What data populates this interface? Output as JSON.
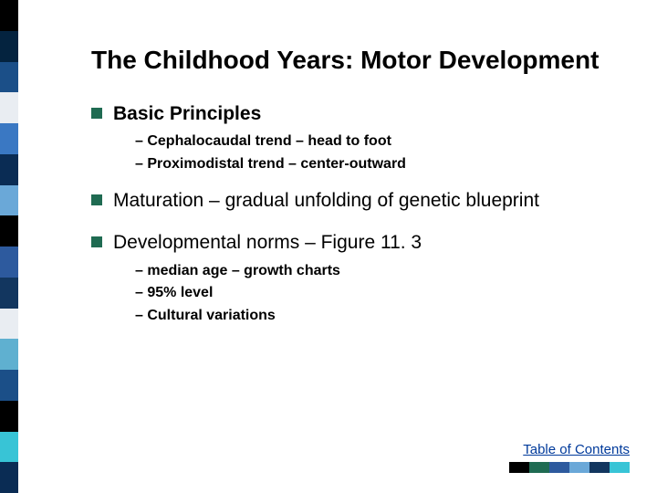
{
  "sidebar_colors": [
    "#000000",
    "#04233f",
    "#1b4f88",
    "#e9edf2",
    "#3a78c3",
    "#0a2c54",
    "#6aa8d8",
    "#000000",
    "#2d5a9e",
    "#12365f",
    "#e9edf2",
    "#5fb0d0",
    "#1b4f88",
    "#000000",
    "#38c4d6",
    "#0a2c54"
  ],
  "title": "The Childhood Years: Motor Development",
  "bullets": [
    {
      "text": "Basic Principles",
      "bold": true,
      "subs": [
        "Cephalocaudal trend – head to foot",
        "Proximodistal trend – center-outward"
      ]
    },
    {
      "text": "Maturation – gradual unfolding of genetic blueprint",
      "bold": false,
      "subs": []
    },
    {
      "text": "Developmental norms – Figure 11. 3",
      "bold": false,
      "subs": [
        "median age – growth charts",
        "95% level",
        "Cultural variations"
      ]
    }
  ],
  "footer": {
    "link_text": "Table of Contents",
    "swatch_colors": [
      "#000000",
      "#1f6b52",
      "#2d5a9e",
      "#6aa8d8",
      "#12365f",
      "#38c4d6"
    ]
  },
  "bullet_square_color": "#1f6b52",
  "title_fontsize": 28,
  "body_fontsize": 21,
  "sub_fontsize": 16
}
